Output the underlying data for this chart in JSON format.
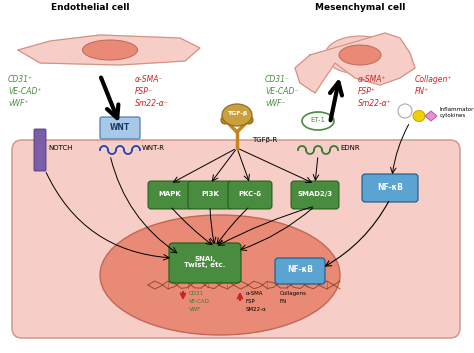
{
  "title_left": "Endothelial cell",
  "title_right": "Mesenchymal cell",
  "green_color": "#4a8c3f",
  "red_color": "#cc2222",
  "orange_color": "#c8841a",
  "purple_color": "#7b5ea7",
  "blue_color": "#5ba3d0",
  "dark_green": "#3a7a35",
  "navy_blue": "#2244aa",
  "label_green_left": [
    "CD31⁺",
    "VE-CAD⁺",
    "vWF⁺"
  ],
  "label_red_left": [
    "α-SMA⁻",
    "FSP⁻",
    "Sm22-α⁻"
  ],
  "label_green_right": [
    "CD31⁻",
    "VE-CAD⁻",
    "vWF⁻"
  ],
  "label_red_right": [
    "α-SMA⁺",
    "FSP⁺",
    "Sm22-α⁺"
  ],
  "label_red_right2": [
    "Collagen⁺",
    "FN⁺"
  ],
  "signaling_labels": [
    "MAPK",
    "PI3K",
    "PKC-δ",
    "SMAD2/3"
  ],
  "nucleus_label": "SNAI,\nTwist, etc.",
  "nfkb_label": "NF-κB",
  "down_genes": [
    "CD31",
    "VE-CAD",
    "VWF"
  ],
  "up_genes": [
    "α-SMA",
    "FSP",
    "SM22-α"
  ],
  "up_genes2": [
    "Collagens",
    "FN"
  ],
  "infl_label": "Inflammatory\ncytokines"
}
